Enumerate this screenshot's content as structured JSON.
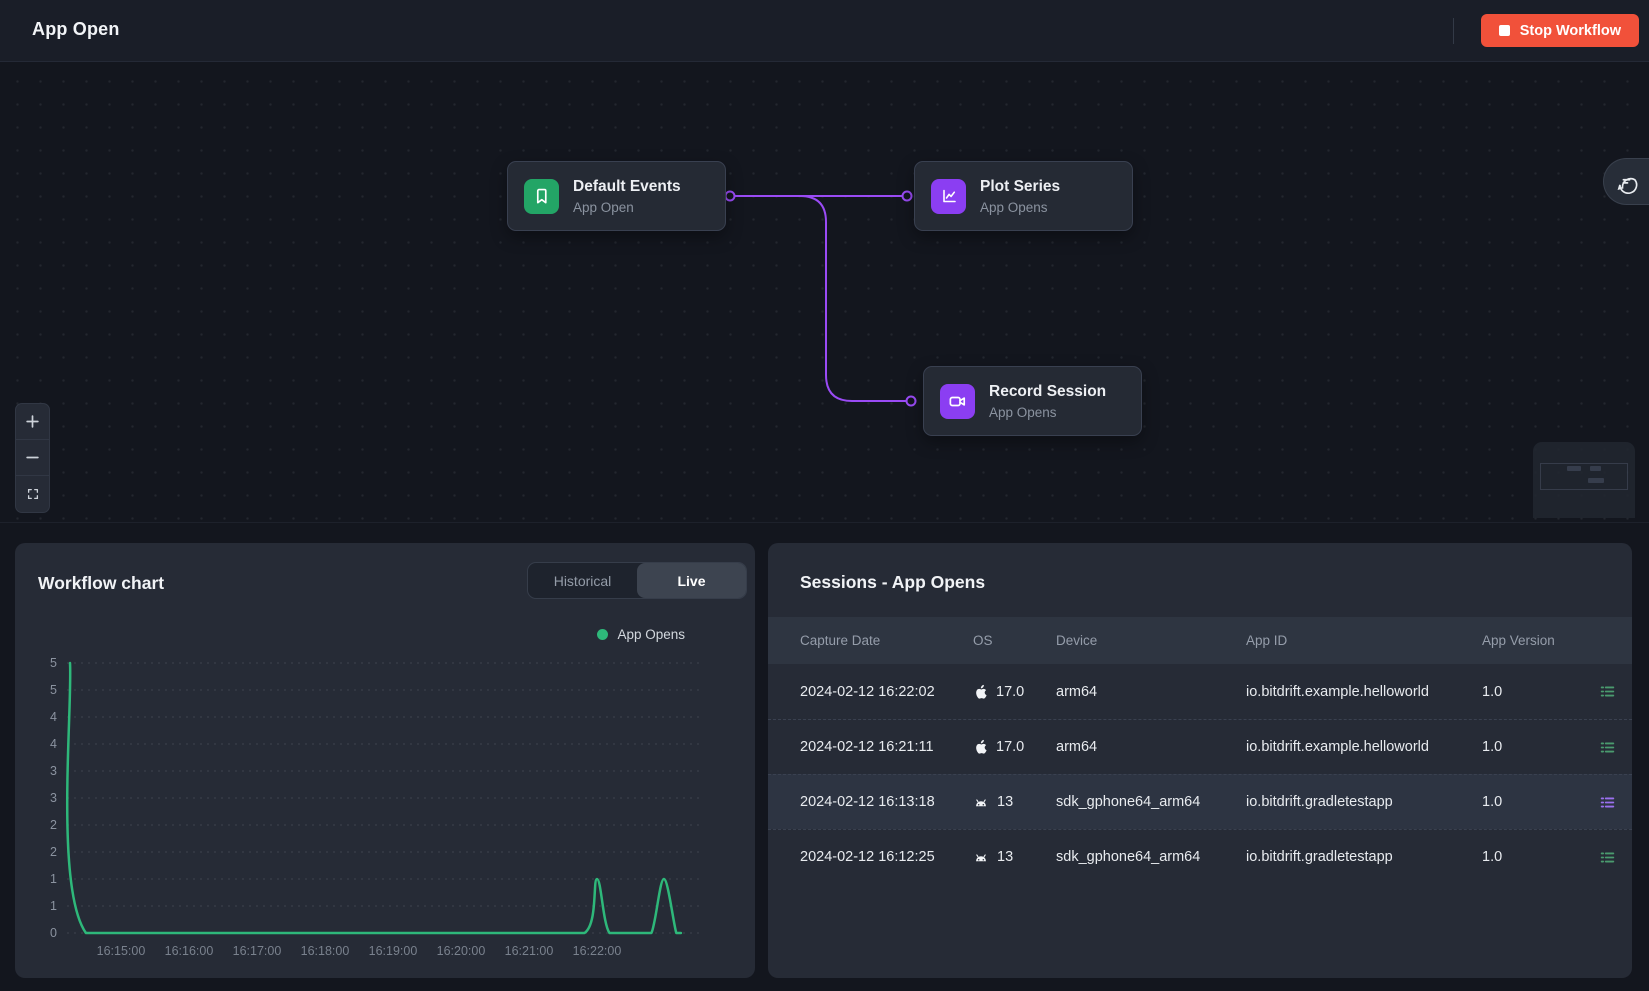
{
  "topbar": {
    "title": "App Open",
    "stop_button_label": "Stop Workflow"
  },
  "canvas": {
    "edge_color": "#9a4bf5",
    "nodes": [
      {
        "title": "Default Events",
        "subtitle": "App Open",
        "icon": "bookmark-icon",
        "icon_bg": "#23a566"
      },
      {
        "title": "Plot Series",
        "subtitle": "App Opens",
        "icon": "line-chart-icon",
        "icon_bg": "#8b3ef2"
      },
      {
        "title": "Record Session",
        "subtitle": "App Opens",
        "icon": "video-camera-icon",
        "icon_bg": "#8b3ef2"
      }
    ],
    "zoom_controls": [
      "zoom-in",
      "zoom-out",
      "fit-view"
    ]
  },
  "workflow_chart": {
    "title": "Workflow chart",
    "toggle": {
      "options": [
        "Historical",
        "Live"
      ],
      "active": "Live"
    },
    "legend": [
      {
        "label": "App Opens",
        "color": "#2eb87a"
      }
    ],
    "chart_data": {
      "type": "line",
      "title": "Workflow chart",
      "series": [
        {
          "name": "App Opens",
          "color": "#2eb87a",
          "points_time_value": [
            [
              "16:14:15",
              5
            ],
            [
              "16:14:29",
              0
            ],
            [
              "16:17:00",
              0
            ],
            [
              "16:20:50",
              0
            ],
            [
              "16:21:49",
              0
            ],
            [
              "16:22:00",
              1
            ],
            [
              "16:22:11",
              0
            ],
            [
              "16:22:35",
              0
            ],
            [
              "16:22:48",
              0
            ],
            [
              "16:22:59",
              1
            ],
            [
              "16:23:10",
              0
            ],
            [
              "16:23:14",
              0
            ]
          ]
        }
      ],
      "x_ticks": [
        "16:15:00",
        "16:16:00",
        "16:17:00",
        "16:18:00",
        "16:19:00",
        "16:20:00",
        "16:21:00",
        "16:22:00"
      ],
      "y_tick_labels": [
        "5",
        "5",
        "4",
        "4",
        "3",
        "3",
        "2",
        "2",
        "1",
        "1",
        "0"
      ],
      "ylim": [
        0,
        5
      ],
      "grid": "dashed-horizontal",
      "legend_position": "top-right"
    }
  },
  "sessions": {
    "title": "Sessions - App Opens",
    "columns": [
      "Capture Date",
      "OS",
      "Device",
      "App ID",
      "App Version"
    ],
    "rows": [
      {
        "capture_date": "2024-02-12 16:22:02",
        "os_platform": "apple",
        "os_version": "17.0",
        "device": "arm64",
        "app_id": "io.bitdrift.example.helloworld",
        "app_version": "1.0",
        "action_icon": "list-icon",
        "action_color": "#4a9a6e",
        "highlighted": false
      },
      {
        "capture_date": "2024-02-12 16:21:11",
        "os_platform": "apple",
        "os_version": "17.0",
        "device": "arm64",
        "app_id": "io.bitdrift.example.helloworld",
        "app_version": "1.0",
        "action_icon": "list-icon",
        "action_color": "#4a9a6e",
        "highlighted": false
      },
      {
        "capture_date": "2024-02-12 16:13:18",
        "os_platform": "android",
        "os_version": "13",
        "device": "sdk_gphone64_arm64",
        "app_id": "io.bitdrift.gradletestapp",
        "app_version": "1.0",
        "action_icon": "list-icon",
        "action_color": "#9a70ee",
        "highlighted": true
      },
      {
        "capture_date": "2024-02-12 16:12:25",
        "os_platform": "android",
        "os_version": "13",
        "device": "sdk_gphone64_arm64",
        "app_id": "io.bitdrift.gradletestapp",
        "app_version": "1.0",
        "action_icon": "list-icon",
        "action_color": "#4a9a6e",
        "highlighted": false
      }
    ]
  }
}
